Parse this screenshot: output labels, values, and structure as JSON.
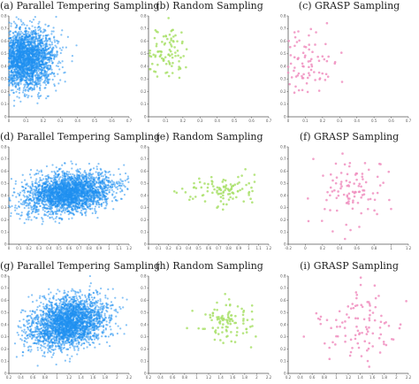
{
  "figure": {
    "panels": [
      {
        "id": "a",
        "title": "(a) Parallel Tempering Sampling"
      },
      {
        "id": "b",
        "title": "(b) Random Sampling"
      },
      {
        "id": "c",
        "title": "(c) GRASP Sampling"
      },
      {
        "id": "d",
        "title": "(d) Parallel Tempering Sampling"
      },
      {
        "id": "e",
        "title": "(e) Random Sampling"
      },
      {
        "id": "f",
        "title": "(f) GRASP Sampling"
      },
      {
        "id": "g",
        "title": "(g) Parallel Tempering Sampling"
      },
      {
        "id": "h",
        "title": "(h) Random Sampling"
      },
      {
        "id": "i",
        "title": "(i) GRASP Sampling"
      }
    ],
    "colors": {
      "parallel_tempering": "#1f8ff0",
      "random": "#a9e06a",
      "grasp": "#f08fc0"
    }
  },
  "chart_data": [
    {
      "type": "scatter",
      "panel": "a",
      "xlim": [
        0,
        0.7
      ],
      "ylim": [
        0,
        0.8
      ],
      "xticks": [
        "0",
        "0.1",
        "0.2",
        "0.3",
        "0.4",
        "0.5",
        "0.6",
        "0.7"
      ],
      "yticks": [
        "0",
        "0.1",
        "0.2",
        "0.3",
        "0.4",
        "0.5",
        "0.6",
        "0.7",
        "0.8"
      ],
      "cluster": {
        "center": [
          0.09,
          0.46
        ],
        "spread": [
          0.09,
          0.12
        ],
        "density": "dense, thousands of points"
      }
    },
    {
      "type": "scatter",
      "panel": "b",
      "xlim": [
        0,
        0.7
      ],
      "ylim": [
        0,
        0.8
      ],
      "xticks": [
        "0",
        "0.1",
        "0.2",
        "0.3",
        "0.4",
        "0.5",
        "0.6",
        "0.7"
      ],
      "yticks": [
        "0",
        "0.1",
        "0.2",
        "0.3",
        "0.4",
        "0.5",
        "0.6",
        "0.7",
        "0.8"
      ],
      "cluster": {
        "center": [
          0.1,
          0.5
        ],
        "spread": [
          0.07,
          0.1
        ],
        "count_approx": 100
      }
    },
    {
      "type": "scatter",
      "panel": "c",
      "xlim": [
        0,
        0.7
      ],
      "ylim": [
        0,
        0.8
      ],
      "xticks": [
        "0",
        "0.1",
        "0.2",
        "0.3",
        "0.4",
        "0.5",
        "0.6",
        "0.7"
      ],
      "yticks": [
        "0",
        "0.1",
        "0.2",
        "0.3",
        "0.4",
        "0.5",
        "0.6",
        "0.7",
        "0.8"
      ],
      "cluster": {
        "center": [
          0.09,
          0.45
        ],
        "spread": [
          0.1,
          0.15
        ],
        "count_approx": 100
      }
    },
    {
      "type": "scatter",
      "panel": "d",
      "xlim": [
        0,
        1.2
      ],
      "ylim": [
        0,
        0.8
      ],
      "xticks": [
        "0",
        "0.1",
        "0.2",
        "0.3",
        "0.4",
        "0.5",
        "0.6",
        "0.7",
        "0.8",
        "0.9",
        "1",
        "1.1",
        "1.2"
      ],
      "yticks": [
        "0",
        "0.1",
        "0.2",
        "0.3",
        "0.4",
        "0.5",
        "0.6",
        "0.7",
        "0.8"
      ],
      "cluster": {
        "center": [
          0.6,
          0.42
        ],
        "spread": [
          0.22,
          0.08
        ],
        "density": "dense, thousands of points"
      }
    },
    {
      "type": "scatter",
      "panel": "e",
      "xlim": [
        0,
        1.2
      ],
      "ylim": [
        0,
        0.8
      ],
      "xticks": [
        "0",
        "0.1",
        "0.2",
        "0.3",
        "0.4",
        "0.5",
        "0.6",
        "0.7",
        "0.8",
        "0.9",
        "1",
        "1.1",
        "1.2"
      ],
      "yticks": [
        "0",
        "0.1",
        "0.2",
        "0.3",
        "0.4",
        "0.5",
        "0.6",
        "0.7",
        "0.8"
      ],
      "cluster": {
        "center": [
          0.75,
          0.45
        ],
        "spread": [
          0.18,
          0.07
        ],
        "count_approx": 100
      }
    },
    {
      "type": "scatter",
      "panel": "f",
      "xlim": [
        -0.2,
        1.2
      ],
      "ylim": [
        0,
        0.8
      ],
      "xticks": [
        "-0.2",
        "0",
        "0.2",
        "0.4",
        "0.6",
        "0.8",
        "1",
        "1.2"
      ],
      "yticks": [
        "0",
        "0.1",
        "0.2",
        "0.3",
        "0.4",
        "0.5",
        "0.6",
        "0.7",
        "0.8"
      ],
      "cluster": {
        "center": [
          0.55,
          0.42
        ],
        "spread": [
          0.25,
          0.12
        ],
        "count_approx": 100
      }
    },
    {
      "type": "scatter",
      "panel": "g",
      "xlim": [
        0.2,
        2.2
      ],
      "ylim": [
        0,
        0.8
      ],
      "xticks": [
        "0.2",
        "0.4",
        "0.6",
        "0.8",
        "1",
        "1.2",
        "1.4",
        "1.6",
        "1.8",
        "2",
        "2.2"
      ],
      "yticks": [
        "0",
        "0.1",
        "0.2",
        "0.3",
        "0.4",
        "0.5",
        "0.6",
        "0.7",
        "0.8"
      ],
      "cluster": {
        "center": [
          1.2,
          0.42
        ],
        "spread": [
          0.32,
          0.1
        ],
        "density": "dense, thousands of points"
      }
    },
    {
      "type": "scatter",
      "panel": "h",
      "xlim": [
        0.2,
        2.2
      ],
      "ylim": [
        0,
        0.8
      ],
      "xticks": [
        "0.2",
        "0.4",
        "0.6",
        "0.8",
        "1",
        "1.2",
        "1.4",
        "1.6",
        "1.8",
        "2",
        "2.2"
      ],
      "yticks": [
        "0",
        "0.1",
        "0.2",
        "0.3",
        "0.4",
        "0.5",
        "0.6",
        "0.7",
        "0.8"
      ],
      "cluster": {
        "center": [
          1.5,
          0.42
        ],
        "spread": [
          0.25,
          0.08
        ],
        "count_approx": 100
      }
    },
    {
      "type": "scatter",
      "panel": "i",
      "xlim": [
        0.2,
        2.2
      ],
      "ylim": [
        0,
        0.8
      ],
      "xticks": [
        "0.2",
        "0.4",
        "0.6",
        "0.8",
        "1",
        "1.2",
        "1.4",
        "1.6",
        "1.8",
        "2",
        "2.2"
      ],
      "yticks": [
        "0",
        "0.1",
        "0.2",
        "0.3",
        "0.4",
        "0.5",
        "0.6",
        "0.7",
        "0.8"
      ],
      "cluster": {
        "center": [
          1.4,
          0.4
        ],
        "spread": [
          0.35,
          0.14
        ],
        "count_approx": 100
      }
    }
  ]
}
